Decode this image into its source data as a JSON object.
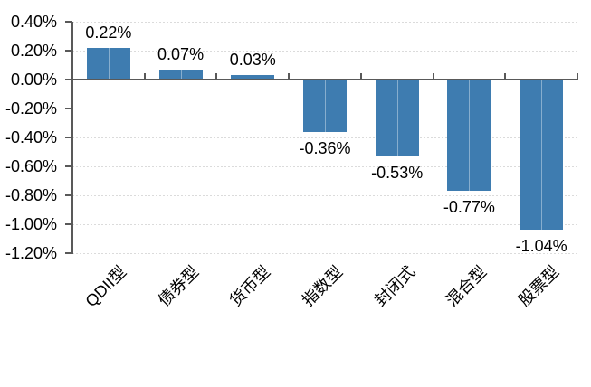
{
  "chart_data": {
    "type": "bar",
    "title": "",
    "xlabel": "",
    "ylabel": "",
    "categories": [
      "QDII型",
      "债券型",
      "货币型",
      "指数型",
      "封闭式",
      "混合型",
      "股票型"
    ],
    "values": [
      0.22,
      0.07,
      0.03,
      -0.36,
      -0.53,
      -0.77,
      -1.04
    ],
    "data_labels": [
      "0.22%",
      "0.07%",
      "0.03%",
      "-0.36%",
      "-0.53%",
      "-0.77%",
      "-1.04%"
    ],
    "y_tick_labels": [
      "0.40%",
      "0.20%",
      "0.00%",
      "-0.20%",
      "-0.40%",
      "-0.60%",
      "-0.80%",
      "-1.00%",
      "-1.20%"
    ],
    "ylim": [
      -1.2,
      0.4
    ],
    "y_step": 0.2,
    "legend": null,
    "grid": "horizontal-dashed",
    "x_label_rotation_deg": -45,
    "colors": {
      "bar": "#3E7CB0",
      "bar_center_line": "rgba(255,255,255,0.38)",
      "axis": "#595959",
      "gridline": "#DBDBDB",
      "text": "#000000",
      "background": "#FFFFFF"
    }
  }
}
